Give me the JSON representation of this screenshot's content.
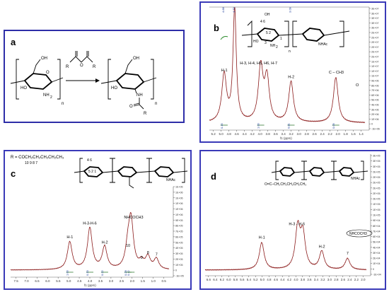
{
  "panels": {
    "a": {
      "letter": "a"
    },
    "b": {
      "letter": "b"
    },
    "c": {
      "letter": "c"
    },
    "d": {
      "letter": "d"
    }
  },
  "scheme_a": {
    "left_oh": "OH",
    "left_ho": "HO",
    "left_nh2": "NH",
    "left_sub2": "2",
    "left_o": "O",
    "left_n": "n",
    "reagent_r1": "R",
    "reagent_r2": "R",
    "reagent_o": "O",
    "right_oh": "OH",
    "right_ho": "HO",
    "right_nh": "NH",
    "right_o": "O",
    "right_r": "R",
    "right_n": "n"
  },
  "structure_b": {
    "oh": "OH",
    "nums": "4  6",
    "nums2": "5  2",
    "ho": "HO",
    "three": "3",
    "nh2": "NH",
    "sub2": "2",
    "one": "1",
    "nhac": "NHAc",
    "n": "n"
  },
  "structure_c": {
    "r_formula": "R = COCH₂CH₂CH₂CH₂CH₃",
    "r_nums": "10    9    8    7",
    "nhac": "NHAc",
    "nums": "4 6",
    "nums2": "5 2 1"
  },
  "structure_d": {
    "nhac": "NHAc",
    "r_small": "O=C–CH₂CH₂CH₂CH₂CH₃"
  },
  "chart_data": [
    {
      "type": "line",
      "panel": "b",
      "xlabel": "f1 (ppm)",
      "xlim": [
        5.2,
        1.2
      ],
      "x_ticks": [
        "5.2",
        "5.0",
        "4.8",
        "4.6",
        "4.4",
        "4.2",
        "4.0",
        "3.8",
        "3.6",
        "3.4",
        "3.2",
        "3.0",
        "2.8",
        "2.6",
        "2.4",
        "2.2",
        "2.0",
        "1.8",
        "1.6",
        "1.4"
      ],
      "right_axis_ticks": [
        "3E+07",
        "3E+07",
        "3E+07",
        "3E+07",
        "3E+07",
        "2E+07",
        "2E+07",
        "2E+07",
        "2E+07",
        "2E+07",
        "2E+07",
        "1E+07",
        "1E+07",
        "1E+07",
        "1E+07",
        "9E+06",
        "8E+06",
        "7E+06",
        "6E+06",
        "5E+06",
        "4E+06",
        "3E+06",
        "2E+06",
        "1E+06",
        "0",
        "-1E+06"
      ],
      "peaks": [
        {
          "ppm": 4.82,
          "height": 0.42,
          "label": "H-1"
        },
        {
          "ppm": 4.55,
          "height": 1.0,
          "label": ""
        },
        {
          "ppm": 3.88,
          "height": 0.48,
          "label": "H-3, H-4, H5, H6, H-7"
        },
        {
          "ppm": 3.72,
          "height": 0.38,
          "label": ""
        },
        {
          "ppm": 3.1,
          "height": 0.36,
          "label": "H-2"
        },
        {
          "ppm": 1.95,
          "height": 0.4,
          "label": "C – CH3"
        }
      ],
      "integrals": [
        "0.15",
        "1.00",
        "0.81",
        "0.09"
      ],
      "carbonyl_label": "O",
      "top_ticks": [
        "4.79",
        "4.88",
        "3.09"
      ]
    },
    {
      "type": "line",
      "panel": "c",
      "xlabel": "f1 (ppm)",
      "xlim": [
        7.8,
        0.3
      ],
      "x_ticks": [
        "7.5",
        "7.0",
        "6.5",
        "6.0",
        "5.5",
        "5.0",
        "4.5",
        "4.0",
        "3.5",
        "3.0",
        "2.5",
        "2.0",
        "1.5",
        "1.0",
        "0.5"
      ],
      "right_axis_ticks": [
        "1E+06",
        "1E+06",
        "1E+06",
        "1E+06",
        "1E+06",
        "1E+06",
        "9E+05",
        "8E+05",
        "7E+05",
        "6E+05",
        "5E+05",
        "4E+05",
        "3E+05",
        "2E+05",
        "1E+05",
        "0",
        "-1E+05"
      ],
      "peaks": [
        {
          "ppm": 5.0,
          "height": 0.32,
          "label": "H-1"
        },
        {
          "ppm": 4.05,
          "height": 0.48,
          "label": "H-3-H-6"
        },
        {
          "ppm": 3.35,
          "height": 0.26,
          "label": "H-2"
        },
        {
          "ppm": 2.1,
          "height": 0.55,
          "label": "NHCOCH3"
        },
        {
          "ppm": 2.25,
          "height": 0.22,
          "label": "10"
        },
        {
          "ppm": 1.6,
          "height": 0.08,
          "label": "9"
        },
        {
          "ppm": 1.3,
          "height": 0.14,
          "label": "8"
        },
        {
          "ppm": 0.9,
          "height": 0.12,
          "label": "7"
        }
      ],
      "integrals": [
        "1.00",
        "0.33",
        "0.22",
        "0.42",
        "0.28"
      ]
    },
    {
      "type": "line",
      "panel": "d",
      "xlabel": "",
      "xlim": [
        6.6,
        1.9
      ],
      "x_ticks": [
        "6.6",
        "6.4",
        "6.2",
        "6.0",
        "5.8",
        "5.6",
        "5.4",
        "5.2",
        "5.0",
        "4.8",
        "4.6",
        "4.4",
        "4.2",
        "4.0",
        "3.8",
        "3.6",
        "3.4",
        "3.2",
        "3.0",
        "2.8",
        "2.6",
        "2.4",
        "2.2",
        "2.0"
      ],
      "right_axis_ticks": [
        "3E+05",
        "3E+05",
        "3E+05",
        "2E+05",
        "2E+05",
        "2E+05",
        "2E+05",
        "2E+05",
        "2E+05",
        "1E+05",
        "1E+05",
        "1E+05",
        "9E+04",
        "8E+04",
        "7E+04",
        "6E+04",
        "5E+04",
        "4E+04",
        "3E+04",
        "2E+04",
        "1E+04",
        "0",
        "-1E+04"
      ],
      "peaks": [
        {
          "ppm": 4.95,
          "height": 0.24,
          "label": "H-1"
        },
        {
          "ppm": 3.9,
          "height": 0.36,
          "label": "H-3 - H-6"
        },
        {
          "ppm": 3.75,
          "height": 0.3,
          "label": ""
        },
        {
          "ppm": 3.2,
          "height": 0.16,
          "label": "H-2"
        },
        {
          "ppm": 2.45,
          "height": 0.1,
          "label": "7"
        }
      ],
      "nhcoch3_label": "NHCOCH3"
    }
  ]
}
